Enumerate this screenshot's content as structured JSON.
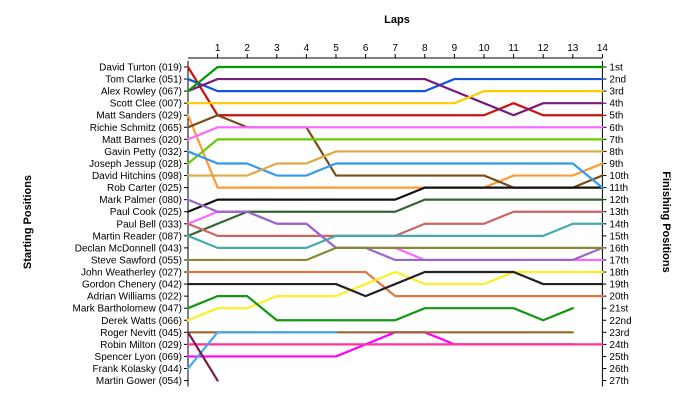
{
  "chart_data": {
    "type": "line",
    "title": "",
    "top_axis_label": "Laps",
    "left_axis_label": "Starting Positions",
    "right_axis_label": "Finishing Positions",
    "laps": [
      0,
      1,
      2,
      3,
      4,
      5,
      6,
      7,
      8,
      9,
      10,
      11,
      12,
      13,
      14
    ],
    "lap_tick_labels": [
      "1",
      "2",
      "3",
      "4",
      "5",
      "6",
      "7",
      "8",
      "9",
      "10",
      "11",
      "12",
      "13",
      "14"
    ],
    "start_labels": [
      "David Turton (019)",
      "Tom Clarke (051)",
      "Alex Rowley (067)",
      "Scott Clee (007)",
      "Matt Sanders (029)",
      "Richie Schmitz (065)",
      "Matt Barnes (020)",
      "Gavin Petty (032)",
      "Joseph Jessup (028)",
      "David Hitchins (098)",
      "Rob Carter (025)",
      "Mark Palmer (080)",
      "Paul Cook (025)",
      "Paul Bell (033)",
      "Martin Reader (087)",
      "Declan McDonnell (043)",
      "Steve Sawford (055)",
      "John Weatherley (027)",
      "Gordon Chenery (042)",
      "Adrian Williams (022)",
      "Mark Bartholomew (047)",
      "Derek Watts (066)",
      "Roger Nevitt (045)",
      "Robin Milton (029)",
      "Spencer Lyon (069)",
      "Frank Kolasky (044)",
      "Martin Gower (054)"
    ],
    "finish_labels": [
      "1st",
      "2nd",
      "3rd",
      "4th",
      "5th",
      "6th",
      "7th",
      "8th",
      "9th",
      "10th",
      "11th",
      "12th",
      "13th",
      "14th",
      "15th",
      "16th",
      "17th",
      "18th",
      "19th",
      "20th",
      "21st",
      "22nd",
      "23rd",
      "24th",
      "25th",
      "26th",
      "27th"
    ],
    "grid": false,
    "series": [
      {
        "color": "#cc1111",
        "positions": [
          1,
          5,
          5,
          5,
          5,
          5,
          5,
          5,
          5,
          5,
          5,
          4,
          5,
          5,
          5
        ]
      },
      {
        "color": "#ff66ff",
        "positions": [
          14,
          13,
          13,
          14,
          14,
          16,
          16,
          16,
          17,
          17,
          17,
          17,
          17,
          17,
          17
        ]
      },
      {
        "color": "#1155dd",
        "positions": [
          2,
          3,
          3,
          3,
          3,
          3,
          3,
          3,
          3,
          2,
          2,
          2,
          2,
          2,
          2
        ]
      },
      {
        "color": "#7a1a7a",
        "positions": [
          3,
          2,
          2,
          2,
          2,
          2,
          2,
          2,
          2,
          3,
          4,
          5,
          4,
          4,
          4
        ]
      },
      {
        "color": "#ffcc00",
        "positions": [
          4,
          4,
          4,
          4,
          4,
          4,
          4,
          4,
          4,
          4,
          3,
          3,
          3,
          3,
          3
        ]
      },
      {
        "color": "#ff00ff",
        "positions": [
          25,
          25,
          25,
          25,
          25,
          25,
          24,
          23,
          23,
          24,
          24,
          24,
          24,
          24
        ]
      },
      {
        "color": "#ff3399",
        "positions": [
          24,
          24,
          24,
          24,
          24,
          24,
          24,
          24,
          24,
          24,
          24,
          24,
          24,
          24,
          24
        ]
      },
      {
        "color": "#009900",
        "positions": [
          3,
          1,
          1,
          1,
          1,
          1,
          1,
          1,
          1,
          1,
          1,
          1,
          1,
          1,
          1
        ]
      },
      {
        "color": "#ff9933",
        "positions": [
          5,
          11,
          11,
          11,
          11,
          11,
          11,
          11,
          11,
          11,
          11,
          10,
          10,
          10,
          9
        ]
      },
      {
        "color": "#7a4a1a",
        "positions": [
          6,
          5,
          6,
          6,
          6,
          10,
          10,
          10,
          10,
          10,
          10,
          11,
          11,
          11,
          10
        ]
      },
      {
        "color": "#111111",
        "positions": [
          13,
          12,
          12,
          12,
          12,
          12,
          12,
          12,
          11,
          11,
          11,
          11,
          11,
          11,
          11
        ]
      },
      {
        "color": "#66cc00",
        "positions": [
          9,
          7,
          7,
          7,
          7,
          7,
          7,
          7,
          7,
          7,
          7,
          7,
          7,
          7,
          7
        ]
      },
      {
        "color": "#ff66ff",
        "positions": [
          7,
          6,
          6,
          6,
          6,
          6,
          6,
          6,
          6,
          6,
          6,
          6,
          6,
          6,
          6
        ]
      },
      {
        "color": "#3399ee",
        "positions": [
          8,
          9,
          9,
          10,
          10,
          9,
          9,
          9,
          9,
          9,
          9,
          9,
          9,
          9,
          11
        ]
      },
      {
        "color": "#ddaa44",
        "positions": [
          10,
          10,
          10,
          9,
          9,
          8,
          8,
          8,
          8,
          8,
          8,
          8,
          8,
          8,
          8
        ]
      },
      {
        "color": "#336633",
        "positions": [
          15,
          14,
          13,
          13,
          13,
          13,
          13,
          13,
          12,
          12,
          12,
          12,
          12,
          12,
          12
        ]
      },
      {
        "color": "#cc6666",
        "positions": [
          14,
          15,
          15,
          15,
          15,
          15,
          15,
          15,
          14,
          14,
          14,
          13,
          13,
          13,
          13
        ]
      },
      {
        "color": "#9966cc",
        "positions": [
          12,
          13,
          13,
          14,
          14,
          16,
          16,
          17,
          17,
          17,
          17,
          17,
          17,
          17,
          16
        ]
      },
      {
        "color": "#44aaaa",
        "positions": [
          15,
          16,
          16,
          16,
          16,
          15,
          15,
          15,
          15,
          15,
          15,
          15,
          15,
          14,
          14
        ]
      },
      {
        "color": "#888833",
        "positions": [
          17,
          17,
          17,
          17,
          17,
          16,
          16,
          16,
          16,
          16,
          16,
          16,
          16,
          16,
          16
        ]
      },
      {
        "color": "#dd7744",
        "positions": [
          18,
          18,
          18,
          18,
          18,
          18,
          18,
          20,
          20,
          20,
          20,
          20,
          20,
          20,
          20
        ]
      },
      {
        "color": "#ffee22",
        "positions": [
          22,
          21,
          21,
          20,
          20,
          20,
          19,
          18,
          19,
          19,
          19,
          18,
          18,
          18,
          18
        ]
      },
      {
        "color": "#222222",
        "positions": [
          19,
          19,
          19,
          19,
          19,
          19,
          20,
          19,
          18,
          18,
          18,
          18,
          19,
          19,
          19
        ]
      },
      {
        "color": "#119911",
        "positions": [
          21,
          20,
          20,
          22,
          22,
          22,
          22,
          22,
          21,
          21,
          21,
          21,
          22,
          21
        ]
      },
      {
        "color": "#996633",
        "positions": [
          23,
          23,
          23,
          23,
          23,
          23,
          23,
          23,
          23,
          23,
          23,
          23,
          23,
          23
        ]
      },
      {
        "color": "#44aaee",
        "positions": [
          26,
          23,
          23,
          23,
          23,
          23
        ]
      },
      {
        "color": "#7a1a4a",
        "positions": [
          23,
          27
        ]
      }
    ]
  }
}
